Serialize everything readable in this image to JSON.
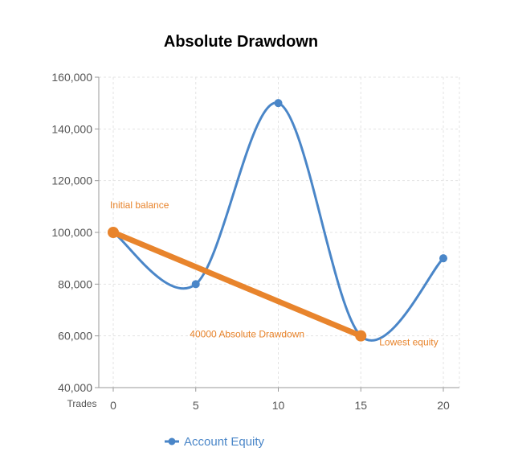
{
  "chart_data": {
    "type": "line",
    "title": "Absolute Drawdown",
    "xlabel": "Trades",
    "ylabel": "",
    "x_ticks": [
      "0",
      "5",
      "10",
      "15",
      "20"
    ],
    "y_ticks": [
      "40,000",
      "60,000",
      "80,000",
      "100,000",
      "120,000",
      "140,000",
      "160,000"
    ],
    "xlim": [
      0,
      20
    ],
    "ylim": [
      40000,
      160000
    ],
    "grid": true,
    "legend_position": "bottom",
    "series": [
      {
        "name": "Account Equity",
        "color": "#4a86c8",
        "smooth": true,
        "x": [
          0,
          5,
          10,
          15,
          20
        ],
        "y": [
          100000,
          80000,
          150000,
          60000,
          90000
        ]
      },
      {
        "color": "#e8842c",
        "x": [
          0,
          15
        ],
        "y": [
          100000,
          60000
        ]
      }
    ],
    "annotations": [
      {
        "text": "Initial balance",
        "x": 0,
        "y": 100000
      },
      {
        "text": "Lowest equity",
        "x": 15,
        "y": 60000
      },
      {
        "text": "40000 Absolute Drawdown",
        "x": 6,
        "y": 60000
      }
    ]
  },
  "legend": {
    "items": [
      {
        "label": "Account Equity",
        "color": "#4a86c8"
      }
    ]
  }
}
